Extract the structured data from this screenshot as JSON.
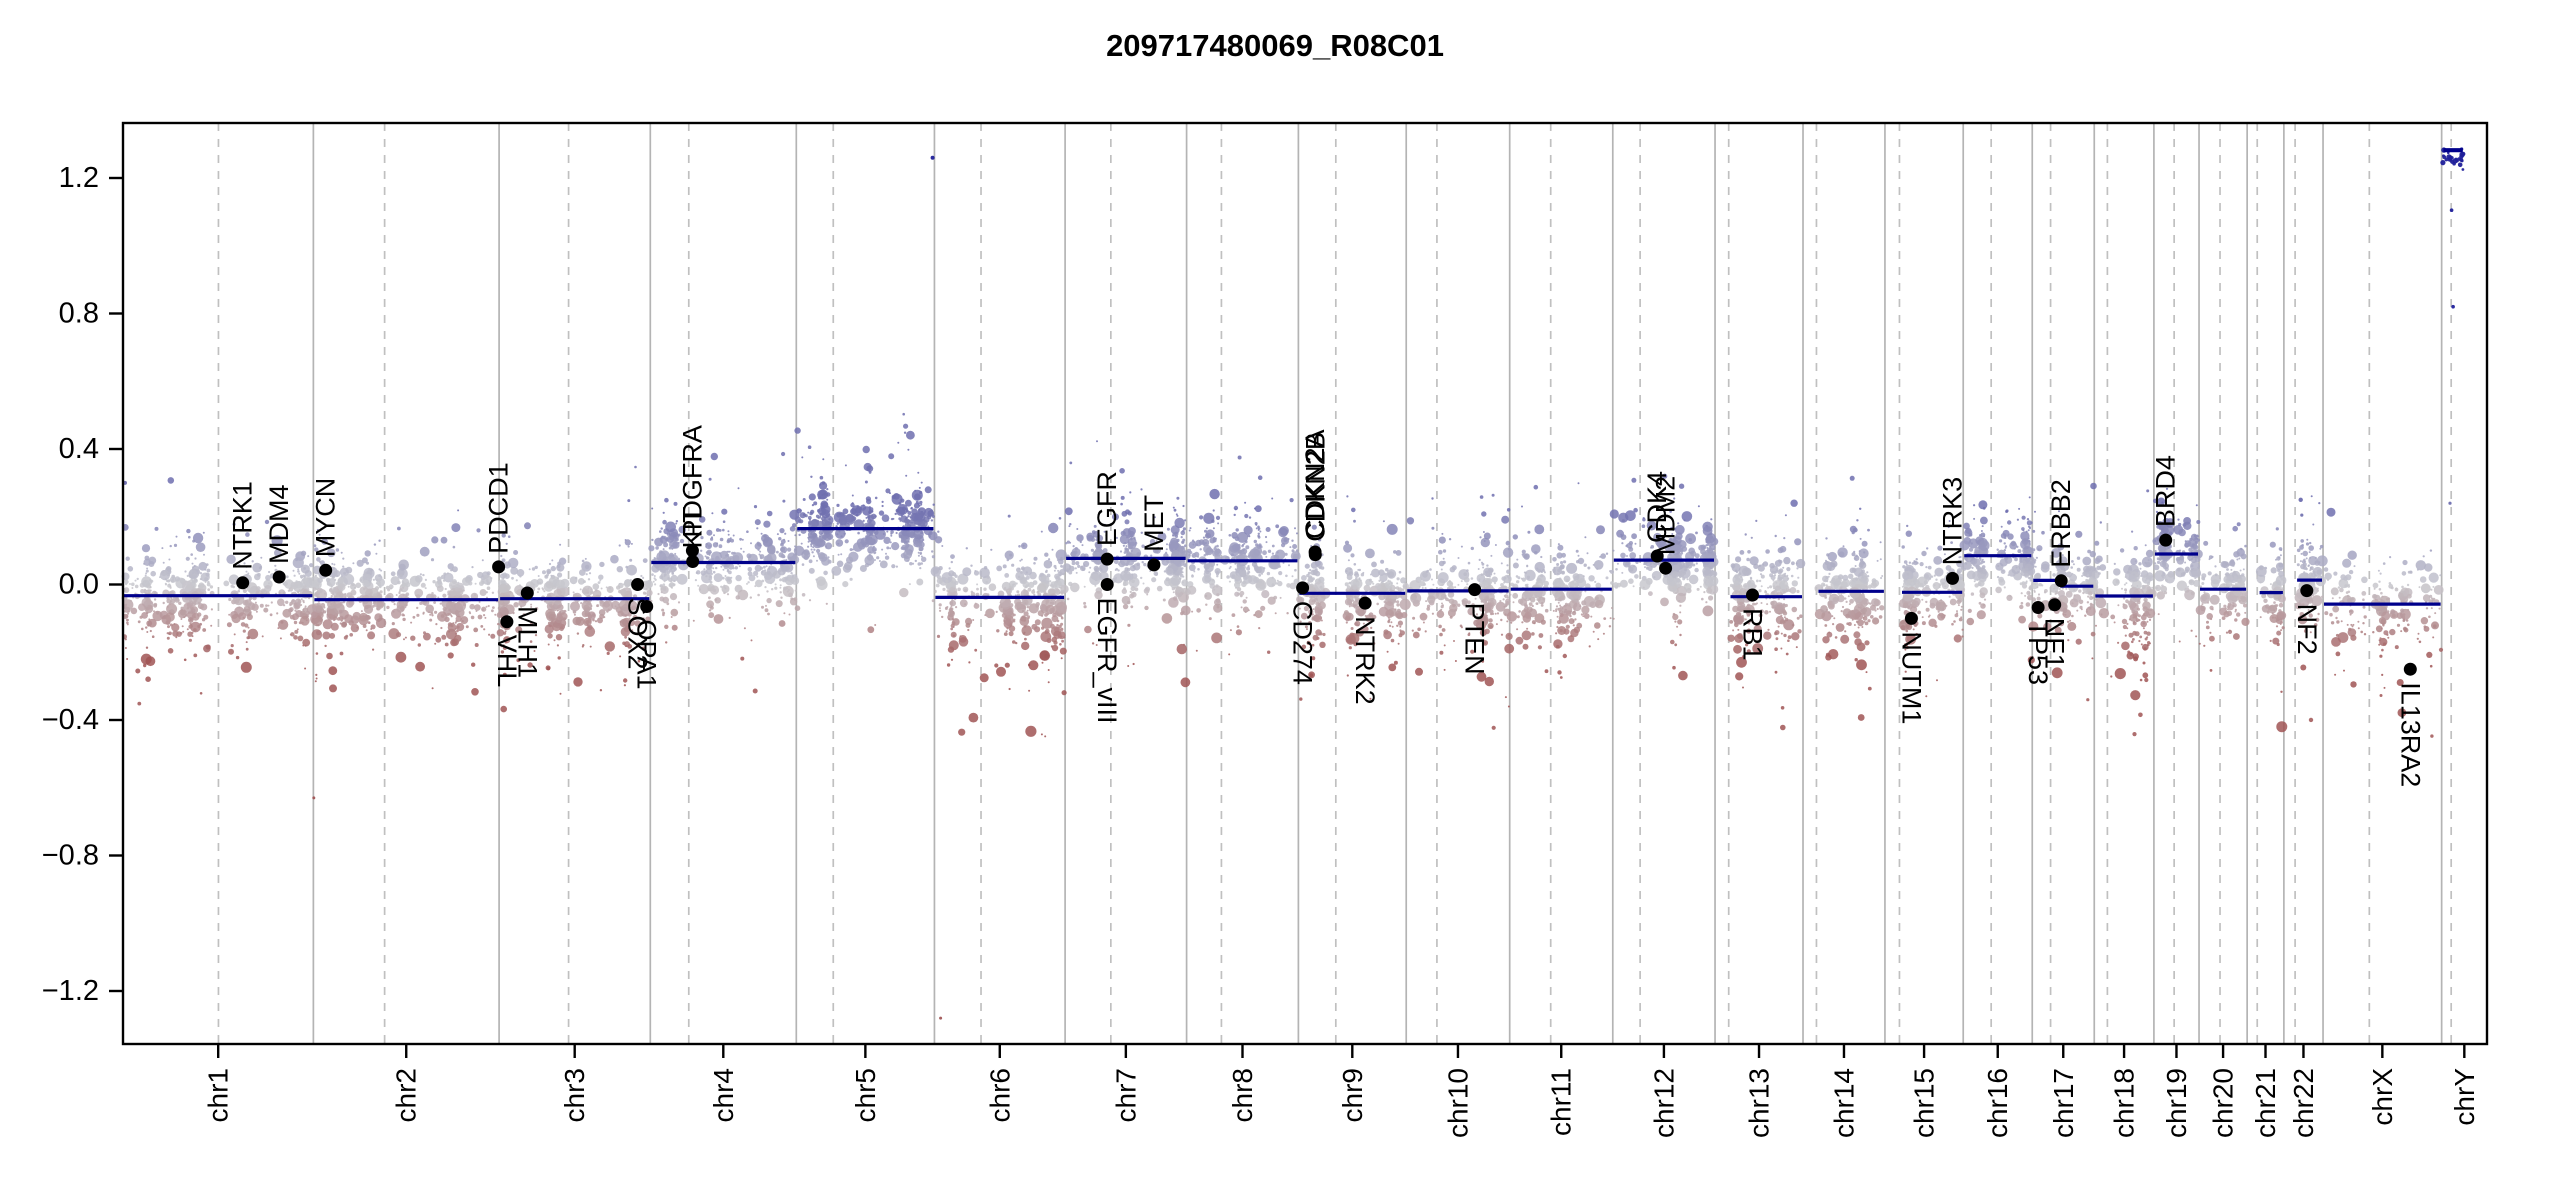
{
  "title": "209717480069_R08C01",
  "chart_data": {
    "type": "scatter",
    "subtype": "genome-wide-copy-number-profile",
    "title": "209717480069_R08C01",
    "ylabel": "",
    "xlabel": "",
    "ylim": [
      -1.35,
      1.35
    ],
    "grid": "chromosome-boundaries-solid, centromeres-dashed",
    "y_ticks": [
      {
        "v": 1.2,
        "label": "1.2"
      },
      {
        "v": 0.8,
        "label": "0.8"
      },
      {
        "v": 0.4,
        "label": "0.4"
      },
      {
        "v": 0.0,
        "label": "0.0"
      },
      {
        "v": -0.4,
        "label": "−0.4"
      },
      {
        "v": -0.8,
        "label": "−0.8"
      },
      {
        "v": -1.2,
        "label": "−1.2"
      }
    ],
    "chromosomes": [
      {
        "name": "chr1",
        "length_mb": 249.3,
        "centromere_mb": 125.0,
        "gap_half_mb": 8,
        "acrocentric": false,
        "point_density": 3.2,
        "spread": 1.0,
        "neg_tail": 1.25,
        "segments": [
          {
            "start_mb": 0,
            "end_mb": 249.3,
            "value": -0.033
          }
        ]
      },
      {
        "name": "chr2",
        "length_mb": 243.2,
        "centromere_mb": 93.3,
        "gap_half_mb": 4,
        "acrocentric": false,
        "point_density": 3.2,
        "spread": 1.0,
        "neg_tail": 1.3,
        "segments": [
          {
            "start_mb": 0,
            "end_mb": 243.2,
            "value": -0.045
          }
        ]
      },
      {
        "name": "chr3",
        "length_mb": 198.0,
        "centromere_mb": 91.0,
        "gap_half_mb": 4,
        "acrocentric": false,
        "point_density": 3.2,
        "spread": 1.0,
        "neg_tail": 1.3,
        "segments": [
          {
            "start_mb": 0,
            "end_mb": 198.0,
            "value": -0.042
          }
        ]
      },
      {
        "name": "chr4",
        "length_mb": 191.2,
        "centromere_mb": 50.4,
        "gap_half_mb": 4,
        "acrocentric": false,
        "point_density": 3.2,
        "spread": 1.0,
        "neg_tail": 1.2,
        "segments": [
          {
            "start_mb": 0,
            "end_mb": 191.2,
            "value": 0.065
          }
        ]
      },
      {
        "name": "chr5",
        "length_mb": 180.9,
        "centromere_mb": 48.4,
        "gap_half_mb": 4,
        "acrocentric": false,
        "point_density": 4.0,
        "spread": 1.1,
        "neg_tail": 1.0,
        "segments": [
          {
            "start_mb": 0,
            "end_mb": 180.9,
            "value": 0.165
          }
        ]
      },
      {
        "name": "chr6",
        "length_mb": 171.1,
        "centromere_mb": 61.0,
        "gap_half_mb": 4,
        "acrocentric": false,
        "point_density": 3.2,
        "spread": 1.05,
        "neg_tail": 1.6,
        "segments": [
          {
            "start_mb": 0,
            "end_mb": 171.1,
            "value": -0.038
          }
        ]
      },
      {
        "name": "chr7",
        "length_mb": 159.1,
        "centromere_mb": 59.9,
        "gap_half_mb": 4,
        "acrocentric": false,
        "point_density": 3.3,
        "spread": 1.0,
        "neg_tail": 1.1,
        "segments": [
          {
            "start_mb": 0,
            "end_mb": 159.1,
            "value": 0.077
          }
        ]
      },
      {
        "name": "chr8",
        "length_mb": 146.4,
        "centromere_mb": 45.6,
        "gap_half_mb": 4,
        "acrocentric": false,
        "point_density": 3.3,
        "spread": 1.05,
        "neg_tail": 1.3,
        "segments": [
          {
            "start_mb": 0,
            "end_mb": 146.4,
            "value": 0.07
          }
        ]
      },
      {
        "name": "chr9",
        "length_mb": 141.2,
        "centromere_mb": 49.0,
        "gap_half_mb": 13,
        "acrocentric": false,
        "point_density": 3.2,
        "spread": 1.0,
        "neg_tail": 1.3,
        "segments": [
          {
            "start_mb": 0,
            "end_mb": 141.2,
            "value": -0.026
          }
        ]
      },
      {
        "name": "chr10",
        "length_mb": 135.5,
        "centromere_mb": 40.2,
        "gap_half_mb": 4,
        "acrocentric": false,
        "point_density": 3.2,
        "spread": 1.0,
        "neg_tail": 1.3,
        "segments": [
          {
            "start_mb": 0,
            "end_mb": 135.5,
            "value": -0.019
          }
        ]
      },
      {
        "name": "chr11",
        "length_mb": 135.0,
        "centromere_mb": 53.7,
        "gap_half_mb": 4,
        "acrocentric": false,
        "point_density": 3.2,
        "spread": 1.0,
        "neg_tail": 1.3,
        "segments": [
          {
            "start_mb": 0,
            "end_mb": 135.0,
            "value": -0.014
          }
        ]
      },
      {
        "name": "chr12",
        "length_mb": 133.9,
        "centromere_mb": 35.8,
        "gap_half_mb": 4,
        "acrocentric": false,
        "point_density": 3.4,
        "spread": 1.0,
        "neg_tail": 1.1,
        "segments": [
          {
            "start_mb": 0,
            "end_mb": 133.9,
            "value": 0.072
          }
        ]
      },
      {
        "name": "chr13",
        "length_mb": 115.2,
        "centromere_mb": 17.9,
        "gap_half_mb": 4,
        "acrocentric": true,
        "point_density": 3.2,
        "spread": 1.0,
        "neg_tail": 1.3,
        "segments": [
          {
            "start_mb": 19,
            "end_mb": 115.2,
            "value": -0.036
          }
        ]
      },
      {
        "name": "chr14",
        "length_mb": 107.3,
        "centromere_mb": 17.6,
        "gap_half_mb": 4,
        "acrocentric": true,
        "point_density": 3.2,
        "spread": 1.0,
        "neg_tail": 1.25,
        "segments": [
          {
            "start_mb": 19,
            "end_mb": 107.3,
            "value": -0.02
          }
        ]
      },
      {
        "name": "chr15",
        "length_mb": 102.5,
        "centromere_mb": 19.0,
        "gap_half_mb": 4,
        "acrocentric": true,
        "point_density": 3.2,
        "spread": 1.0,
        "neg_tail": 1.25,
        "segments": [
          {
            "start_mb": 21,
            "end_mb": 102.5,
            "value": -0.023
          }
        ]
      },
      {
        "name": "chr16",
        "length_mb": 90.4,
        "centromere_mb": 36.6,
        "gap_half_mb": 8,
        "acrocentric": false,
        "point_density": 3.6,
        "spread": 1.15,
        "neg_tail": 1.1,
        "segments": [
          {
            "start_mb": 0,
            "end_mb": 90.4,
            "value": 0.085
          }
        ]
      },
      {
        "name": "chr17",
        "length_mb": 81.2,
        "centromere_mb": 24.0,
        "gap_half_mb": 4,
        "acrocentric": false,
        "point_density": 3.4,
        "spread": 1.0,
        "neg_tail": 1.2,
        "segments": [
          {
            "start_mb": 0,
            "end_mb": 35.5,
            "value": 0.012
          },
          {
            "start_mb": 35.5,
            "end_mb": 81.2,
            "value": -0.005
          }
        ]
      },
      {
        "name": "chr18",
        "length_mb": 78.1,
        "centromere_mb": 17.2,
        "gap_half_mb": 4,
        "acrocentric": false,
        "point_density": 3.2,
        "spread": 1.0,
        "neg_tail": 1.4,
        "segments": [
          {
            "start_mb": 0,
            "end_mb": 78.1,
            "value": -0.034
          }
        ]
      },
      {
        "name": "chr19",
        "length_mb": 59.1,
        "centromere_mb": 26.5,
        "gap_half_mb": 4,
        "acrocentric": false,
        "point_density": 3.6,
        "spread": 1.1,
        "neg_tail": 1.0,
        "segments": [
          {
            "start_mb": 0,
            "end_mb": 59.1,
            "value": 0.09
          }
        ]
      },
      {
        "name": "chr20",
        "length_mb": 63.0,
        "centromere_mb": 27.5,
        "gap_half_mb": 4,
        "acrocentric": false,
        "point_density": 3.2,
        "spread": 1.0,
        "neg_tail": 1.2,
        "segments": [
          {
            "start_mb": 0,
            "end_mb": 63.0,
            "value": -0.014
          }
        ]
      },
      {
        "name": "chr21",
        "length_mb": 48.1,
        "centromere_mb": 13.2,
        "gap_half_mb": 4,
        "acrocentric": true,
        "point_density": 2.6,
        "spread": 1.0,
        "neg_tail": 1.3,
        "segments": [
          {
            "start_mb": 15,
            "end_mb": 48.1,
            "value": -0.024
          }
        ]
      },
      {
        "name": "chr22",
        "length_mb": 51.3,
        "centromere_mb": 14.7,
        "gap_half_mb": 4,
        "acrocentric": true,
        "point_density": 3.0,
        "spread": 0.95,
        "neg_tail": 1.1,
        "segments": [
          {
            "start_mb": 16,
            "end_mb": 51.3,
            "value": 0.013
          }
        ]
      },
      {
        "name": "chrX",
        "length_mb": 155.3,
        "centromere_mb": 60.6,
        "gap_half_mb": 5,
        "acrocentric": false,
        "point_density": 1.8,
        "spread": 1.15,
        "neg_tail": 1.4,
        "segments": [
          {
            "start_mb": 0,
            "end_mb": 155.3,
            "value": -0.058
          }
        ]
      },
      {
        "name": "chrY",
        "length_mb": 59.4,
        "centromere_mb": 12.5,
        "gap_half_mb": 4,
        "acrocentric": false,
        "point_density": 0,
        "spread": 1.0,
        "neg_tail": 1.0,
        "segments": [
          {
            "start_mb": 1,
            "end_mb": 29,
            "value": 1.282,
            "thick": true
          }
        ]
      }
    ],
    "chrY_point_cluster": {
      "chrom": "chrY",
      "mb_start": 1.5,
      "mb_end": 28.5,
      "value": 1.26,
      "value_sd": 0.011,
      "count": 26
    },
    "genes": [
      {
        "name": "NTRK1",
        "chrom": "chr1",
        "mb": 156.8,
        "value": 0.005,
        "label_side": "above"
      },
      {
        "name": "MDM4",
        "chrom": "chr1",
        "mb": 204.5,
        "value": 0.022,
        "label_side": "above"
      },
      {
        "name": "MYCN",
        "chrom": "chr2",
        "mb": 16.1,
        "value": 0.042,
        "label_side": "above"
      },
      {
        "name": "PDCD1",
        "chrom": "chr2",
        "mb": 242.5,
        "value": 0.052,
        "label_side": "above"
      },
      {
        "name": "VHL",
        "chrom": "chr3",
        "mb": 10.2,
        "value": -0.11,
        "label_side": "below"
      },
      {
        "name": "MLH1",
        "chrom": "chr3",
        "mb": 37.0,
        "value": -0.025,
        "label_side": "below"
      },
      {
        "name": "SOX2",
        "chrom": "chr3",
        "mb": 181.4,
        "value": 0.0,
        "label_side": "below"
      },
      {
        "name": "OPA1",
        "chrom": "chr3",
        "mb": 193.3,
        "value": -0.065,
        "label_side": "below"
      },
      {
        "name": "PDGFRA",
        "chrom": "chr4",
        "mb": 55.1,
        "value": 0.1,
        "label_side": "above"
      },
      {
        "name": "KIT",
        "chrom": "chr4",
        "mb": 55.5,
        "value": 0.068,
        "label_side": "above"
      },
      {
        "name": "EGFR",
        "chrom": "chr7",
        "mb": 55.1,
        "value": 0.075,
        "label_side": "above"
      },
      {
        "name": "EGFR_vIII",
        "chrom": "chr7",
        "mb": 55.1,
        "value": 0.0,
        "label_side": "below"
      },
      {
        "name": "MET",
        "chrom": "chr7",
        "mb": 116.3,
        "value": 0.058,
        "label_side": "above"
      },
      {
        "name": "CD274",
        "chrom": "chr9",
        "mb": 5.5,
        "value": -0.01,
        "label_side": "below"
      },
      {
        "name": "CDKN2A",
        "chrom": "chr9",
        "mb": 21.9,
        "value": 0.096,
        "label_side": "above"
      },
      {
        "name": "CDKN2B",
        "chrom": "chr9",
        "mb": 22.1,
        "value": 0.088,
        "label_side": "above"
      },
      {
        "name": "NTRK2",
        "chrom": "chr9",
        "mb": 87.3,
        "value": -0.055,
        "label_side": "below"
      },
      {
        "name": "PTEN",
        "chrom": "chr10",
        "mb": 89.7,
        "value": -0.015,
        "label_side": "below"
      },
      {
        "name": "CDK4",
        "chrom": "chr12",
        "mb": 58.1,
        "value": 0.084,
        "label_side": "above"
      },
      {
        "name": "MDM2",
        "chrom": "chr12",
        "mb": 69.2,
        "value": 0.048,
        "label_side": "above"
      },
      {
        "name": "RB1",
        "chrom": "chr13",
        "mb": 49.0,
        "value": -0.031,
        "label_side": "below"
      },
      {
        "name": "NUTM1",
        "chrom": "chr15",
        "mb": 34.6,
        "value": -0.1,
        "label_side": "below"
      },
      {
        "name": "NTRK3",
        "chrom": "chr15",
        "mb": 88.4,
        "value": 0.018,
        "label_side": "above"
      },
      {
        "name": "TP53",
        "chrom": "chr17",
        "mb": 7.6,
        "value": -0.068,
        "label_side": "below"
      },
      {
        "name": "NF1",
        "chrom": "chr17",
        "mb": 29.4,
        "value": -0.06,
        "label_side": "below"
      },
      {
        "name": "ERBB2",
        "chrom": "chr17",
        "mb": 37.9,
        "value": 0.011,
        "label_side": "above"
      },
      {
        "name": "BRD4",
        "chrom": "chr19",
        "mb": 15.4,
        "value": 0.131,
        "label_side": "above"
      },
      {
        "name": "NF2",
        "chrom": "chr22",
        "mb": 30.0,
        "value": -0.018,
        "label_side": "below"
      },
      {
        "name": "IL13RA2",
        "chrom": "chrX",
        "mb": 114.2,
        "value": -0.25,
        "label_side": "below"
      }
    ],
    "outlier_points": [
      {
        "chrom": "chr1",
        "mb": 2.6,
        "value": 0.3,
        "r": 2.0
      },
      {
        "chrom": "chr2",
        "mb": 0.5,
        "value": -0.63,
        "r": 1.5
      },
      {
        "chrom": "chr5",
        "mb": 178.5,
        "value": 1.26,
        "r": 2.0
      },
      {
        "chrom": "chr6",
        "mb": 8.0,
        "value": -1.28,
        "r": 1.5
      },
      {
        "chrom": "chr22",
        "mb": 22.0,
        "value": 0.25,
        "r": 2.2
      },
      {
        "chrom": "chr22",
        "mb": 23.5,
        "value": 0.205,
        "r": 1.6
      },
      {
        "chrom": "chrY",
        "mb": 13.0,
        "value": 1.105,
        "r": 1.8
      },
      {
        "chrom": "chrY",
        "mb": 15.0,
        "value": 0.82,
        "r": 1.8
      },
      {
        "chrom": "chrY",
        "mb": 11.0,
        "value": 0.24,
        "r": 1.6
      }
    ],
    "legend_position": "none"
  },
  "style": {
    "segment_line_color": "#00008B",
    "boundary_line_color": "#b4b4b4",
    "centromere_line_color": "#c0c0c0",
    "frame_color": "#000000",
    "gene_color": "#000000",
    "point_color_positive": [
      110,
      110,
      175
    ],
    "point_color_negative": [
      160,
      85,
      85
    ],
    "point_color_neutral": [
      201,
      201,
      207
    ],
    "point_color_high_gain": "#20209a"
  }
}
